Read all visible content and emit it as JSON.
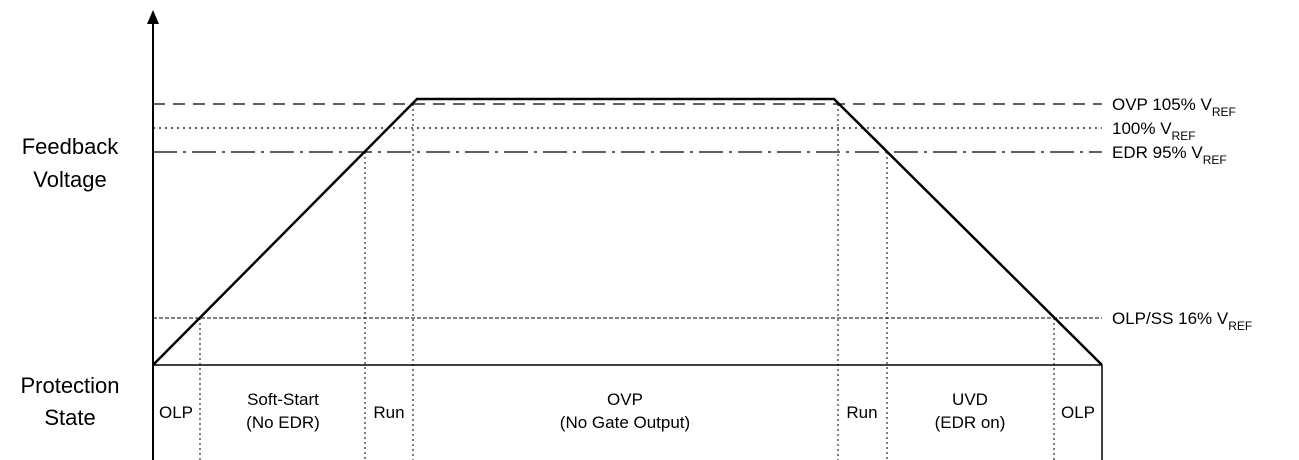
{
  "axis": {
    "y_label_line1": "Feedback",
    "y_label_line2": "Voltage",
    "protection_line1": "Protection",
    "protection_line2": "State"
  },
  "levels": [
    {
      "id": "ovp",
      "prefix": "OVP 105% V",
      "sub": "REF",
      "percent": 105,
      "style": "dashed"
    },
    {
      "id": "vref",
      "prefix": "100% V",
      "sub": "REF",
      "percent": 100,
      "style": "dotted"
    },
    {
      "id": "edr",
      "prefix": "EDR  95% V",
      "sub": "REF",
      "percent": 95,
      "style": "dash-dot"
    },
    {
      "id": "olp",
      "prefix": "OLP/SS  16% V",
      "sub": "REF",
      "percent": 16,
      "style": "fine-dashed"
    }
  ],
  "waveform": {
    "plateau_percent": 106
  },
  "states": [
    {
      "id": "olp-1",
      "line1": "OLP",
      "line2": ""
    },
    {
      "id": "soft-start",
      "line1": "Soft-Start",
      "line2": "(No EDR)"
    },
    {
      "id": "run-1",
      "line1": "Run",
      "line2": ""
    },
    {
      "id": "ovp",
      "line1": "OVP",
      "line2": "(No Gate Output)"
    },
    {
      "id": "run-2",
      "line1": "Run",
      "line2": ""
    },
    {
      "id": "uvd",
      "line1": "UVD",
      "line2": "(EDR on)"
    },
    {
      "id": "olp-2",
      "line1": "OLP",
      "line2": ""
    }
  ]
}
